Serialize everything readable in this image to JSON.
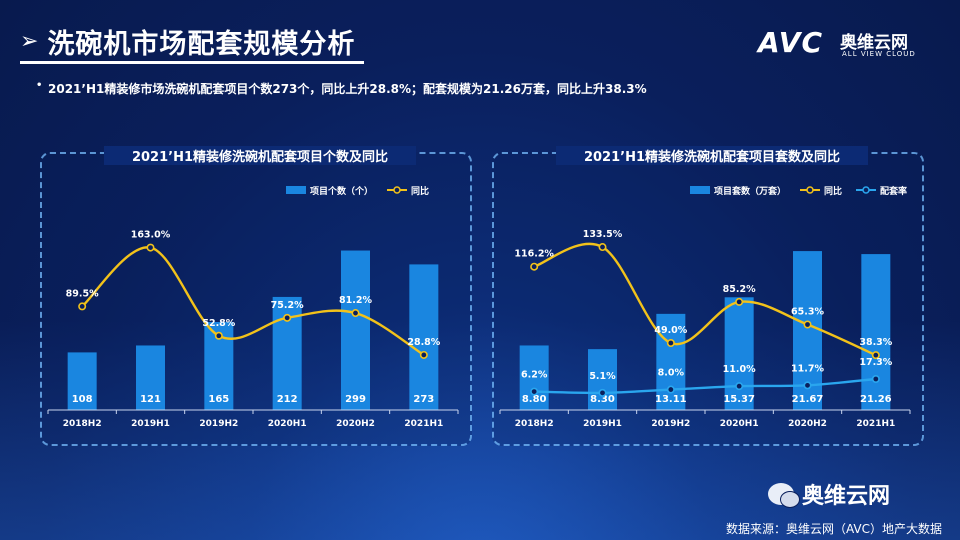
{
  "page": {
    "title_arrow": "➢",
    "title": "洗碗机市场配套规模分析",
    "summary_bullet": "•",
    "summary": "2021’H1精装修市场洗碗机配套项目个数273个，同比上升28.8%；配套规模为21.26万套，同比上升38.3%",
    "logo_main": "AVC",
    "logo_cn": "奥维云网",
    "logo_en": "ALL VIEW CLOUD",
    "wechat_label": "奥维云网",
    "source": "数据来源：奥维云网（AVC）地产大数据",
    "colors": {
      "bar": "#1a86e0",
      "yoy": "#f2c21a",
      "rate": "#2aa6ee",
      "bg": "#0a1f5c"
    }
  },
  "chart_data": [
    {
      "type": "bar",
      "title": "2021’H1精装修洗碗机配套项目个数及同比",
      "categories": [
        "2018H2",
        "2019H1",
        "2019H2",
        "2020H1",
        "2020H2",
        "2021H1"
      ],
      "series": [
        {
          "name": "项目个数（个）",
          "kind": "bar",
          "values": [
            108,
            121,
            165,
            212,
            299,
            273
          ],
          "labels": [
            "108",
            "121",
            "165",
            "212",
            "299",
            "273"
          ]
        },
        {
          "name": "同比",
          "kind": "line",
          "values": [
            89.5,
            163.0,
            52.8,
            75.2,
            81.2,
            28.8
          ],
          "labels": [
            "89.5%",
            "163.0%",
            "52.8%",
            "75.2%",
            "81.2%",
            "28.8%"
          ]
        }
      ],
      "ylim_bar": [
        0,
        330
      ],
      "ylim_line": [
        -40,
        180
      ]
    },
    {
      "type": "bar",
      "title": "2021’H1精装修洗碗机配套项目套数及同比",
      "categories": [
        "2018H2",
        "2019H1",
        "2019H2",
        "2020H1",
        "2020H2",
        "2021H1"
      ],
      "series": [
        {
          "name": "项目套数（万套）",
          "kind": "bar",
          "values": [
            8.8,
            8.3,
            13.11,
            15.37,
            21.67,
            21.26
          ],
          "labels": [
            "8.80",
            "8.30",
            "13.11",
            "15.37",
            "21.67",
            "21.26"
          ]
        },
        {
          "name": "同比",
          "kind": "line",
          "values": [
            116.2,
            133.5,
            49.0,
            85.2,
            65.3,
            38.3
          ],
          "labels": [
            "116.2%",
            "133.5%",
            "49.0%",
            "85.2%",
            "65.3%",
            "38.3%"
          ]
        },
        {
          "name": "配套率",
          "kind": "line",
          "values": [
            6.2,
            5.1,
            8.0,
            11.0,
            11.7,
            17.3
          ],
          "labels": [
            "6.2%",
            "5.1%",
            "8.0%",
            "11.0%",
            "11.7%",
            "17.3%"
          ]
        }
      ],
      "ylim_bar": [
        0,
        24
      ],
      "ylim_line": [
        -10,
        145
      ]
    }
  ]
}
